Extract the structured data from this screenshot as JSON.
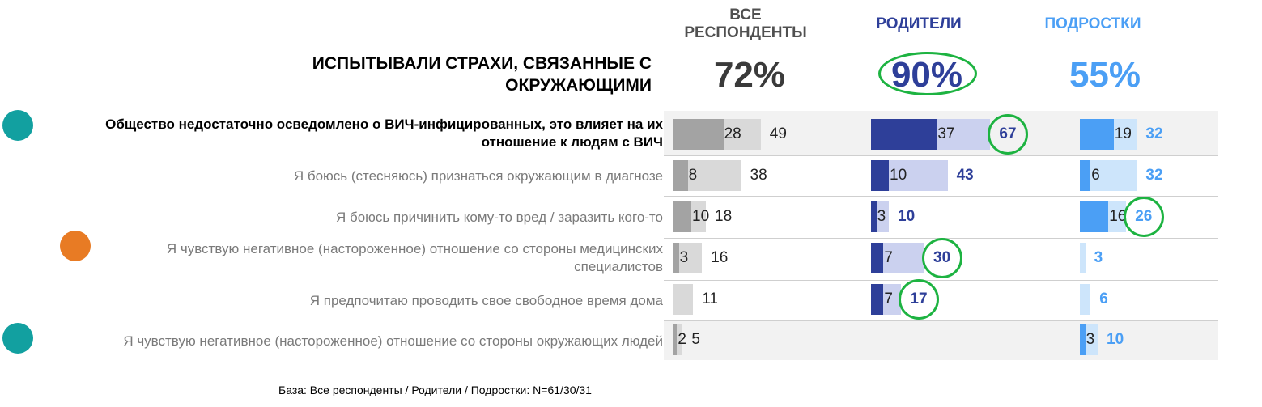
{
  "title": "ИСПЫТЫВАЛИ СТРАХИ, СВЯЗАННЫЕ С ОКРУЖАЮЩИМИ",
  "groups": [
    {
      "name": "ВСЕ РЕСПОНДЕНТЫ",
      "total": "72%",
      "color": "#505050"
    },
    {
      "name": "РОДИТЕЛИ",
      "total": "90%",
      "color": "#2e3f99"
    },
    {
      "name": "ПОДРОСТКИ",
      "total": "55%",
      "color": "#4b9ff5"
    }
  ],
  "base_note": "База: Все респонденты / Родители / Подростки: N=61/30/31",
  "chart_data": {
    "type": "bar",
    "title": "ИСПЫТЫВАЛИ СТРАХИ, СВЯЗАННЫЕ С ОКРУЖАЮЩИМИ",
    "categories": [
      "Общество недостаточно осведомлено о ВИЧ-инфицированных, это влияет на их отношение к людям с ВИЧ",
      "Я боюсь (стесняюсь) признаться окружающим в диагнозе",
      "Я боюсь причинить кому-то вред / заразить кого-то",
      "Я чувствую негативное (настороженное) отношение со стороны медицинских специалистов",
      "Я предпочитаю проводить свое свободное время дома",
      "Я чувствую негативное (настороженное) отношение со стороны окружающих людей"
    ],
    "series": [
      {
        "name": "ВСЕ РЕСПОНДЕНТЫ",
        "inner": [
          28,
          8,
          10,
          3,
          null,
          2
        ],
        "outer": [
          49,
          38,
          18,
          16,
          11,
          5
        ]
      },
      {
        "name": "РОДИТЕЛИ",
        "inner": [
          37,
          10,
          3,
          7,
          7,
          null
        ],
        "outer": [
          67,
          43,
          10,
          30,
          17,
          null
        ]
      },
      {
        "name": "ПОДРОСТКИ",
        "inner": [
          19,
          6,
          16,
          null,
          null,
          3
        ],
        "outer": [
          32,
          32,
          26,
          3,
          6,
          10
        ]
      }
    ],
    "circled": [
      {
        "series": "РОДИТЕЛИ",
        "row": 0
      },
      {
        "series": "ПОДРОСТКИ",
        "row": 2
      },
      {
        "series": "РОДИТЕЛИ",
        "row": 3
      },
      {
        "series": "РОДИТЕЛИ",
        "row": 4
      }
    ],
    "highlighted_rows": [
      0,
      5
    ],
    "row_markers": [
      {
        "row": 0,
        "color": "#12a0a0"
      },
      {
        "row": 3,
        "color": "#e87b24"
      },
      {
        "row": 5,
        "color": "#12a0a0"
      }
    ],
    "colors": {
      "all_inner": "#a3a3a3",
      "all_outer": "#d9d9d9",
      "all_text": "#222222",
      "par_inner": "#2e3f99",
      "par_outer": "#cbd1ef",
      "par_text": "#2e3f99",
      "teen_inner": "#4b9ff5",
      "teen_outer": "#cde5fb",
      "teen_text": "#4b9ff5",
      "ring": "#1db341"
    }
  }
}
